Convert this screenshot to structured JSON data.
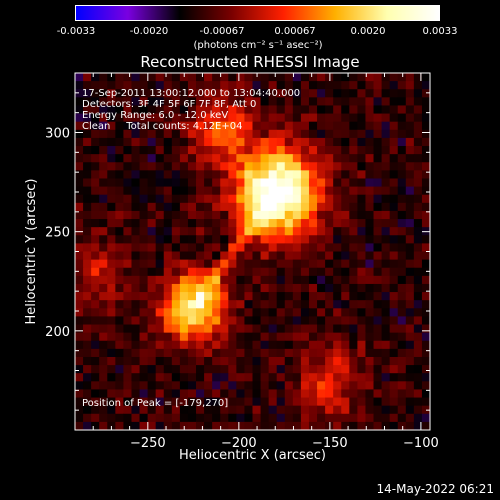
{
  "colorbar": {
    "ticks": [
      "-0.0033",
      "-0.0020",
      "-0.00067",
      "0.00067",
      "0.0020",
      "0.0033"
    ],
    "units": "(photons cm⁻² s⁻¹ asec⁻²)",
    "colors": [
      "#0000ff",
      "#7a00e0",
      "#000000",
      "#7a0000",
      "#ff2000",
      "#ffb000",
      "#ffffb0",
      "#ffffff"
    ]
  },
  "title": "Reconstructed RHESSI Image",
  "info": {
    "line1": "17-Sep-2011 13:00:12.000 to 13:04:40.000",
    "line2": "Detectors: 3F 4F 5F 6F 7F 8F, Att 0",
    "line3": "Energy Range: 6.0 - 12.0 keV",
    "line4": "Clean     Total counts: 4.12E+04",
    "peak": "Position of Peak = [-179,270]"
  },
  "timestamp": "14-May-2022 06:21",
  "chart_data": {
    "type": "heatmap",
    "xlabel": "Heliocentric X (arcsec)",
    "ylabel": "Heliocentric Y (arcsec)",
    "xlim": [
      -290,
      -95
    ],
    "ylim": [
      150,
      330
    ],
    "xticks": [
      -250,
      -200,
      -150,
      -100
    ],
    "yticks": [
      200,
      250,
      300
    ],
    "xtick_labels": [
      "−250",
      "−200",
      "−150",
      "−100"
    ],
    "ytick_labels": [
      "200",
      "250",
      "300"
    ],
    "colorscale_min": -0.0033,
    "colorscale_max": 0.0033,
    "sources": [
      {
        "x": -179,
        "y": 270,
        "value": 0.0033
      },
      {
        "x": -225,
        "y": 212,
        "value": 0.0024
      },
      {
        "x": -210,
        "y": 302,
        "value": 0.0012
      },
      {
        "x": -150,
        "y": 175,
        "value": 0.0011
      },
      {
        "x": -275,
        "y": 230,
        "value": 0.0008
      }
    ]
  }
}
